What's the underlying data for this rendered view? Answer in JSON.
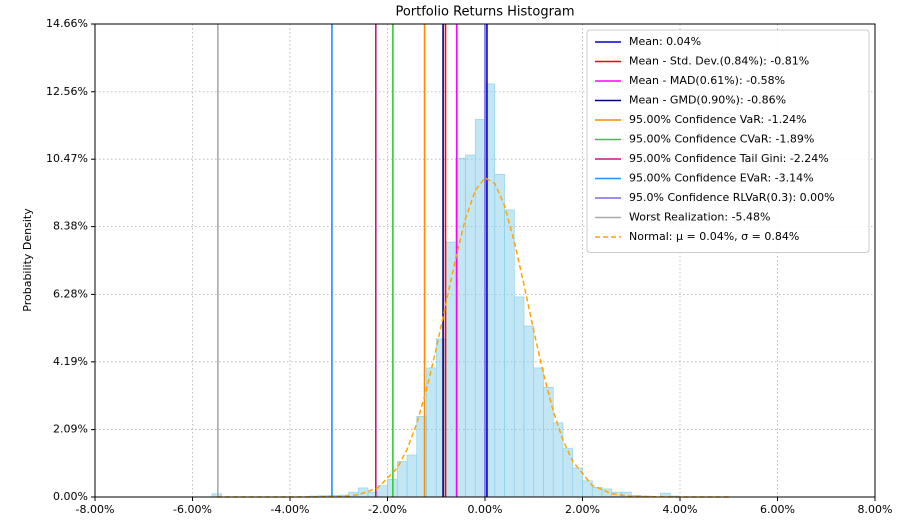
{
  "chart_data": {
    "type": "histogram",
    "title": "Portfolio Returns Histogram",
    "y_label": "Probability Density",
    "bins": [
      -5.6,
      -5.4,
      -5.2,
      -5.0,
      -4.8,
      -4.6,
      -4.4,
      -4.2,
      -4.0,
      -3.8,
      -3.6,
      -3.4,
      -3.2,
      -3.0,
      -2.8,
      -2.6,
      -2.4,
      -2.2,
      -2.0,
      -1.8,
      -1.6,
      -1.4,
      -1.2,
      -1.0,
      -0.8,
      -0.6,
      -0.4,
      -0.2,
      0,
      0.2,
      0.4,
      0.6,
      0.8,
      1.0,
      1.2,
      1.4,
      1.6,
      1.8,
      2.0,
      2.2,
      2.4,
      2.6,
      2.8,
      3.0,
      3.2,
      3.4,
      3.6,
      3.8,
      4.0
    ],
    "values": [
      0.1,
      0,
      0,
      0,
      0,
      0,
      0,
      0,
      0,
      0,
      0.03,
      0.04,
      0.05,
      0.06,
      0.15,
      0.28,
      0.15,
      0.35,
      0.55,
      1.1,
      1.3,
      2.5,
      4.0,
      4.9,
      7.9,
      10.5,
      10.6,
      11.7,
      12.8,
      10.0,
      8.9,
      6.2,
      5.3,
      4.0,
      3.4,
      2.3,
      1.5,
      0.9,
      0.5,
      0.3,
      0.25,
      0.15,
      0.15,
      0.05,
      0.03,
      0,
      0.12,
      0.03
    ],
    "color": "#87ceeb",
    "vlines": [
      {
        "name": "Mean: 0.04%",
        "value": 0.04,
        "color": "#0000cd"
      },
      {
        "name": "Mean - Std. Dev.(0.84%): -0.81%",
        "value": -0.81,
        "color": "#ff0000"
      },
      {
        "name": "Mean - MAD(0.61%): -0.58%",
        "value": -0.58,
        "color": "#ff00ff"
      },
      {
        "name": "Mean - GMD(0.90%): -0.86%",
        "value": -0.86,
        "color": "#000080"
      },
      {
        "name": "95.00% Confidence VaR: -1.24%",
        "value": -1.24,
        "color": "#ff8c00"
      },
      {
        "name": "95.00% Confidence CVaR: -1.89%",
        "value": -1.89,
        "color": "#32cd32"
      },
      {
        "name": "95.00% Confidence Tail Gini: -2.24%",
        "value": -2.24,
        "color": "#c71585"
      },
      {
        "name": "95.00% Confidence EVaR: -3.14%",
        "value": -3.14,
        "color": "#1e90ff"
      },
      {
        "name": "95.0% Confidence RLVaR(0.3): 0.00%",
        "value": 0.0,
        "color": "#7b68ee"
      },
      {
        "name": "Worst Realization: -5.48%",
        "value": -5.48,
        "color": "#a9a9a9"
      }
    ],
    "normal_curve": {
      "name": "Normal: μ = 0.04%, σ = 0.84%",
      "color": "#ffa500",
      "x": [
        -5.5,
        -4.0,
        -3.0,
        -2.6,
        -2.2,
        -1.8,
        -1.6,
        -1.4,
        -1.2,
        -1.0,
        -0.8,
        -0.6,
        -0.4,
        -0.2,
        0,
        0.2,
        0.4,
        0.6,
        0.8,
        1.0,
        1.2,
        1.4,
        1.6,
        1.8,
        2.2,
        2.6,
        3.0,
        4.0,
        5.0
      ],
      "y": [
        0,
        0,
        0.01,
        0.07,
        0.28,
        0.9,
        1.47,
        2.28,
        3.33,
        4.6,
        6.0,
        7.41,
        8.63,
        9.5,
        9.89,
        9.72,
        9.03,
        7.92,
        6.57,
        5.15,
        3.82,
        2.66,
        1.76,
        1.1,
        0.36,
        0.1,
        0.02,
        0,
        0
      ]
    },
    "xlim": [
      -8,
      8
    ],
    "xticks": [
      {
        "value": -8,
        "label": "-8.00%"
      },
      {
        "value": -6,
        "label": "-6.00%"
      },
      {
        "value": -4,
        "label": "-4.00%"
      },
      {
        "value": -2,
        "label": "-2.00%"
      },
      {
        "value": 0,
        "label": "0.00%"
      },
      {
        "value": 2,
        "label": "2.00%"
      },
      {
        "value": 4,
        "label": "4.00%"
      },
      {
        "value": 6,
        "label": "6.00%"
      },
      {
        "value": 8,
        "label": "8.00%"
      }
    ],
    "ylim": [
      0,
      14.66
    ],
    "yticks": [
      {
        "value": 0,
        "label": "0.00%"
      },
      {
        "value": 2.09,
        "label": "2.09%"
      },
      {
        "value": 4.19,
        "label": "4.19%"
      },
      {
        "value": 6.28,
        "label": "6.28%"
      },
      {
        "value": 8.38,
        "label": "8.38%"
      },
      {
        "value": 10.47,
        "label": "10.47%"
      },
      {
        "value": 12.56,
        "label": "12.56%"
      },
      {
        "value": 14.66,
        "label": "14.66%"
      }
    ],
    "grid": true,
    "legend": "upper right"
  }
}
